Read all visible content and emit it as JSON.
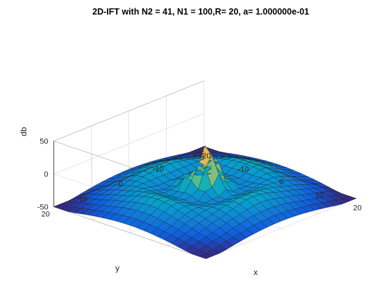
{
  "chart_data": {
    "type": "surface",
    "title": "2D-IFT with N2 = 41, N1 = 100,R= 20, a= 1.000000e-01",
    "xlabel": "x",
    "ylabel": "y",
    "zlabel": "db",
    "xlim": [
      -20,
      20
    ],
    "ylim": [
      -20,
      20
    ],
    "zlim": [
      -50,
      50
    ],
    "x_ticks": [
      "-20",
      "-10",
      "0",
      "10",
      "20"
    ],
    "y_ticks": [
      "-20",
      "-10",
      "0",
      "10",
      "20"
    ],
    "z_ticks": [
      "-50",
      "0",
      "50"
    ],
    "grid": true,
    "colormap": "parula",
    "peak_db": 40,
    "floor_db": -50
  }
}
